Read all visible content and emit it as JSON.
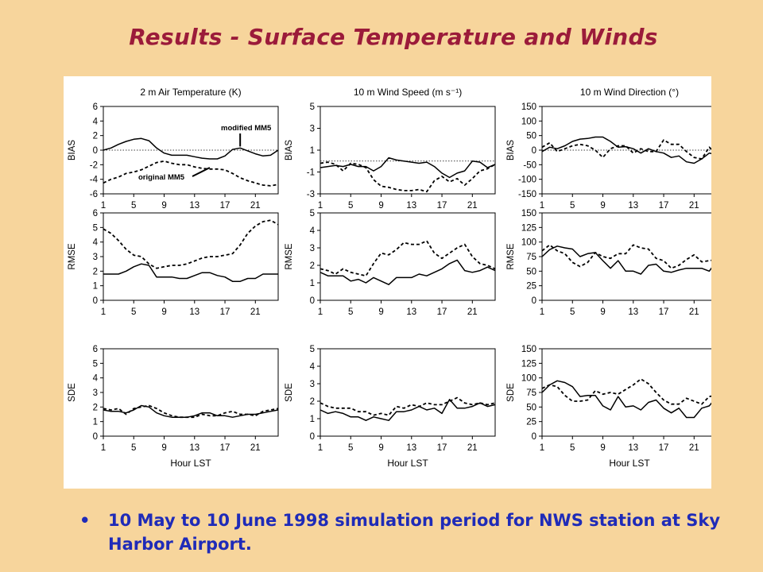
{
  "slide": {
    "title": "Results - Surface Temperature and Winds",
    "bullet_marker": "•",
    "bullet_text": "10 May to 10 June 1998 simulation period for NWS station at Sky Harbor Airport."
  },
  "legend": {
    "solid_label": "modified MM5",
    "dashed_label": "original MM5"
  },
  "x_axis": {
    "label": "Hour LST",
    "ticks": [
      1,
      5,
      9,
      13,
      17,
      21
    ],
    "range": [
      1,
      24
    ]
  },
  "column_titles": [
    "2 m Air Temperature (K)",
    "10 m Wind Speed (m s⁻¹)",
    "10 m Wind Direction (°)"
  ],
  "row_labels": [
    "BIAS",
    "RMSE",
    "SDE"
  ],
  "colors": {
    "background": "#f7d59c",
    "title": "#9b1b3a",
    "bullet": "#1f2bb8",
    "lines": "#000000"
  },
  "chart_data": [
    {
      "type": "line",
      "row": "BIAS",
      "column": "2 m Air Temperature (K)",
      "ylabel": "BIAS",
      "ylim": [
        -6,
        6
      ],
      "yticks": [
        -6,
        -4,
        -2,
        0,
        2,
        4,
        6
      ],
      "zero_line": true,
      "x": [
        1,
        2,
        3,
        4,
        5,
        6,
        7,
        8,
        9,
        10,
        11,
        12,
        13,
        14,
        15,
        16,
        17,
        18,
        19,
        20,
        21,
        22,
        23,
        24
      ],
      "series": [
        {
          "name": "modified MM5",
          "style": "solid",
          "values": [
            0,
            0.3,
            0.8,
            1.2,
            1.5,
            1.6,
            1.3,
            0.3,
            -0.4,
            -0.7,
            -0.7,
            -0.7,
            -0.9,
            -1.1,
            -1.2,
            -1.2,
            -0.8,
            0.1,
            0.3,
            -0.1,
            -0.5,
            -0.8,
            -0.7,
            0
          ]
        },
        {
          "name": "original MM5",
          "style": "dashed",
          "values": [
            -4.5,
            -4.0,
            -3.7,
            -3.2,
            -3.0,
            -2.7,
            -2.2,
            -1.7,
            -1.5,
            -1.8,
            -2.0,
            -2.0,
            -2.3,
            -2.5,
            -2.6,
            -2.6,
            -2.7,
            -3.2,
            -3.8,
            -4.2,
            -4.5,
            -4.8,
            -4.9,
            -4.7
          ]
        }
      ]
    },
    {
      "type": "line",
      "row": "BIAS",
      "column": "10 m Wind Speed (m s⁻¹)",
      "ylabel": "BIAS",
      "ylim": [
        -3,
        5
      ],
      "yticks": [
        -3,
        -1,
        1,
        3,
        5
      ],
      "zero_line": true,
      "x": [
        1,
        2,
        3,
        4,
        5,
        6,
        7,
        8,
        9,
        10,
        11,
        12,
        13,
        14,
        15,
        16,
        17,
        18,
        19,
        20,
        21,
        22,
        23,
        24
      ],
      "series": [
        {
          "name": "modified MM5",
          "style": "solid",
          "values": [
            -0.6,
            -0.5,
            -0.4,
            -0.5,
            -0.3,
            -0.5,
            -0.5,
            -0.9,
            -0.5,
            0.3,
            0.1,
            0,
            -0.1,
            -0.2,
            -0.1,
            -0.5,
            -1.1,
            -1.5,
            -1.1,
            -0.9,
            0,
            -0.1,
            -0.6,
            -0.3
          ]
        },
        {
          "name": "original MM5",
          "style": "dashed",
          "values": [
            -0.2,
            -0.1,
            -0.3,
            -0.9,
            -0.2,
            -0.3,
            -0.6,
            -1.7,
            -2.3,
            -2.4,
            -2.6,
            -2.7,
            -2.7,
            -2.6,
            -2.8,
            -1.8,
            -1.4,
            -1.9,
            -1.6,
            -2.2,
            -1.6,
            -0.9,
            -0.7,
            -0.3
          ]
        }
      ]
    },
    {
      "type": "line",
      "row": "BIAS",
      "column": "10 m Wind Direction (°)",
      "ylabel": "BIAS",
      "ylim": [
        -150,
        150
      ],
      "yticks": [
        -150,
        -100,
        -50,
        0,
        50,
        100,
        150
      ],
      "zero_line": true,
      "x": [
        1,
        2,
        3,
        4,
        5,
        6,
        7,
        8,
        9,
        10,
        11,
        12,
        13,
        14,
        15,
        16,
        17,
        18,
        19,
        20,
        21,
        22,
        23,
        24
      ],
      "series": [
        {
          "name": "modified MM5",
          "style": "solid",
          "values": [
            -5,
            10,
            5,
            15,
            30,
            38,
            40,
            45,
            45,
            30,
            10,
            12,
            5,
            -10,
            5,
            -5,
            -10,
            -25,
            -20,
            -40,
            -45,
            -30,
            -10,
            -15
          ]
        },
        {
          "name": "original MM5",
          "style": "dashed",
          "values": [
            10,
            25,
            -5,
            5,
            15,
            20,
            15,
            0,
            -25,
            5,
            15,
            15,
            -10,
            5,
            -5,
            -5,
            35,
            20,
            20,
            -5,
            -25,
            -30,
            10,
            -15
          ]
        }
      ]
    },
    {
      "type": "line",
      "row": "RMSE",
      "column": "2 m Air Temperature (K)",
      "ylabel": "RMSE",
      "ylim": [
        0,
        6
      ],
      "yticks": [
        0,
        1,
        2,
        3,
        4,
        5,
        6
      ],
      "x": [
        1,
        2,
        3,
        4,
        5,
        6,
        7,
        8,
        9,
        10,
        11,
        12,
        13,
        14,
        15,
        16,
        17,
        18,
        19,
        20,
        21,
        22,
        23,
        24
      ],
      "series": [
        {
          "name": "modified MM5",
          "style": "solid",
          "values": [
            1.8,
            1.8,
            1.8,
            2.0,
            2.3,
            2.5,
            2.4,
            1.6,
            1.6,
            1.6,
            1.5,
            1.5,
            1.7,
            1.9,
            1.9,
            1.7,
            1.6,
            1.3,
            1.3,
            1.5,
            1.5,
            1.8,
            1.8,
            1.8
          ]
        },
        {
          "name": "original MM5",
          "style": "dashed",
          "values": [
            4.9,
            4.6,
            4.1,
            3.5,
            3.1,
            3.0,
            2.5,
            2.2,
            2.3,
            2.4,
            2.4,
            2.5,
            2.7,
            2.9,
            3.0,
            3.0,
            3.1,
            3.2,
            3.8,
            4.6,
            5.1,
            5.4,
            5.5,
            5.2
          ]
        }
      ]
    },
    {
      "type": "line",
      "row": "RMSE",
      "column": "10 m Wind Speed (m s⁻¹)",
      "ylabel": "RMSE",
      "ylim": [
        0,
        5
      ],
      "yticks": [
        0,
        1,
        2,
        3,
        4,
        5
      ],
      "x": [
        1,
        2,
        3,
        4,
        5,
        6,
        7,
        8,
        9,
        10,
        11,
        12,
        13,
        14,
        15,
        16,
        17,
        18,
        19,
        20,
        21,
        22,
        23,
        24
      ],
      "series": [
        {
          "name": "modified MM5",
          "style": "solid",
          "values": [
            1.6,
            1.4,
            1.4,
            1.4,
            1.1,
            1.2,
            1.0,
            1.3,
            1.1,
            0.9,
            1.3,
            1.3,
            1.3,
            1.5,
            1.4,
            1.6,
            1.8,
            2.1,
            2.3,
            1.7,
            1.6,
            1.7,
            1.9,
            1.7
          ]
        },
        {
          "name": "original MM5",
          "style": "dashed",
          "values": [
            1.8,
            1.7,
            1.5,
            1.8,
            1.6,
            1.5,
            1.4,
            2.1,
            2.7,
            2.6,
            2.9,
            3.3,
            3.2,
            3.2,
            3.4,
            2.7,
            2.4,
            2.7,
            3.0,
            3.2,
            2.5,
            2.1,
            2.0,
            1.8
          ]
        }
      ]
    },
    {
      "type": "line",
      "row": "RMSE",
      "column": "10 m Wind Direction (°)",
      "ylabel": "RMSE",
      "ylim": [
        0,
        150
      ],
      "yticks": [
        0,
        25,
        50,
        75,
        100,
        125,
        150
      ],
      "x": [
        1,
        2,
        3,
        4,
        5,
        6,
        7,
        8,
        9,
        10,
        11,
        12,
        13,
        14,
        15,
        16,
        17,
        18,
        19,
        20,
        21,
        22,
        23,
        24
      ],
      "series": [
        {
          "name": "modified MM5",
          "style": "solid",
          "values": [
            75,
            87,
            93,
            90,
            88,
            75,
            80,
            82,
            68,
            55,
            68,
            50,
            50,
            45,
            60,
            62,
            50,
            48,
            52,
            55,
            55,
            55,
            50,
            68
          ]
        },
        {
          "name": "original MM5",
          "style": "dashed",
          "values": [
            85,
            95,
            85,
            80,
            65,
            58,
            65,
            82,
            75,
            72,
            80,
            80,
            95,
            90,
            88,
            72,
            68,
            55,
            60,
            70,
            78,
            66,
            68,
            70
          ]
        }
      ]
    },
    {
      "type": "line",
      "row": "SDE",
      "column": "2 m Air Temperature (K)",
      "ylabel": "SDE",
      "ylim": [
        0,
        6
      ],
      "yticks": [
        0,
        1,
        2,
        3,
        4,
        5,
        6
      ],
      "x": [
        1,
        2,
        3,
        4,
        5,
        6,
        7,
        8,
        9,
        10,
        11,
        12,
        13,
        14,
        15,
        16,
        17,
        18,
        19,
        20,
        21,
        22,
        23,
        24
      ],
      "series": [
        {
          "name": "modified MM5",
          "style": "solid",
          "values": [
            1.8,
            1.7,
            1.7,
            1.6,
            1.8,
            2.1,
            2.0,
            1.6,
            1.4,
            1.3,
            1.3,
            1.3,
            1.4,
            1.6,
            1.6,
            1.4,
            1.4,
            1.3,
            1.4,
            1.5,
            1.5,
            1.6,
            1.7,
            1.8
          ]
        },
        {
          "name": "original MM5",
          "style": "dashed",
          "values": [
            1.9,
            1.8,
            1.9,
            1.5,
            1.9,
            2.0,
            2.1,
            1.9,
            1.6,
            1.4,
            1.3,
            1.3,
            1.3,
            1.5,
            1.4,
            1.4,
            1.6,
            1.7,
            1.5,
            1.5,
            1.4,
            1.7,
            1.8,
            1.9
          ]
        }
      ]
    },
    {
      "type": "line",
      "row": "SDE",
      "column": "10 m Wind Speed (m s⁻¹)",
      "ylabel": "SDE",
      "ylim": [
        0,
        5
      ],
      "yticks": [
        0,
        1,
        2,
        3,
        4,
        5
      ],
      "x": [
        1,
        2,
        3,
        4,
        5,
        6,
        7,
        8,
        9,
        10,
        11,
        12,
        13,
        14,
        15,
        16,
        17,
        18,
        19,
        20,
        21,
        22,
        23,
        24
      ],
      "series": [
        {
          "name": "modified MM5",
          "style": "solid",
          "values": [
            1.5,
            1.3,
            1.4,
            1.3,
            1.1,
            1.1,
            0.9,
            1.1,
            1.0,
            0.9,
            1.4,
            1.4,
            1.5,
            1.7,
            1.5,
            1.6,
            1.3,
            2.1,
            1.6,
            1.6,
            1.7,
            1.9,
            1.7,
            1.8
          ]
        },
        {
          "name": "original MM5",
          "style": "dashed",
          "values": [
            1.9,
            1.7,
            1.6,
            1.6,
            1.6,
            1.4,
            1.4,
            1.2,
            1.3,
            1.2,
            1.7,
            1.6,
            1.8,
            1.7,
            1.9,
            1.8,
            1.8,
            2.0,
            2.2,
            1.9,
            1.8,
            1.9,
            1.8,
            1.9
          ]
        }
      ]
    },
    {
      "type": "line",
      "row": "SDE",
      "column": "10 m Wind Direction (°)",
      "ylabel": "SDE",
      "ylim": [
        0,
        150
      ],
      "yticks": [
        0,
        25,
        50,
        75,
        100,
        125,
        150
      ],
      "x": [
        1,
        2,
        3,
        4,
        5,
        6,
        7,
        8,
        9,
        10,
        11,
        12,
        13,
        14,
        15,
        16,
        17,
        18,
        19,
        20,
        21,
        22,
        23,
        24
      ],
      "series": [
        {
          "name": "modified MM5",
          "style": "solid",
          "values": [
            75,
            88,
            95,
            92,
            85,
            68,
            70,
            70,
            52,
            45,
            68,
            50,
            52,
            45,
            58,
            62,
            48,
            40,
            48,
            32,
            32,
            48,
            52,
            68
          ]
        },
        {
          "name": "original MM5",
          "style": "dashed",
          "values": [
            82,
            88,
            85,
            70,
            60,
            60,
            62,
            78,
            72,
            75,
            72,
            80,
            88,
            98,
            90,
            75,
            62,
            55,
            55,
            65,
            60,
            55,
            68,
            70
          ]
        }
      ]
    }
  ]
}
